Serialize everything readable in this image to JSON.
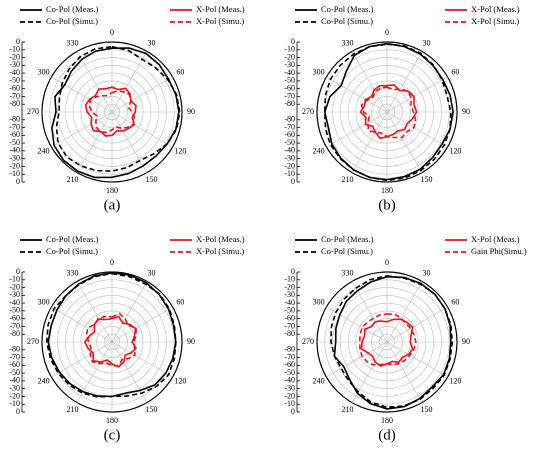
{
  "chart_data": [
    {
      "type": "polar",
      "label": "(a)",
      "rlim": [
        -90,
        0
      ],
      "rticks": [
        0,
        -10,
        -20,
        -30,
        -40,
        -50,
        -60,
        -70,
        -80
      ],
      "thetaticks": [
        0,
        30,
        60,
        90,
        120,
        150,
        180,
        210,
        240,
        270,
        300,
        330
      ],
      "grid": true,
      "theta": [
        0,
        15,
        30,
        45,
        60,
        75,
        90,
        105,
        120,
        135,
        150,
        165,
        180,
        195,
        210,
        225,
        240,
        255,
        270,
        285,
        300,
        315,
        330,
        345
      ],
      "series": [
        {
          "name": "Co-Pol (Meas.)",
          "color": "#000000",
          "dash": false,
          "values": [
            -8,
            -5,
            -3,
            -4,
            -6,
            -5,
            -4,
            -5,
            -8,
            -10,
            -10,
            -8,
            -6,
            -3,
            -2,
            -2,
            -4,
            -10,
            -18,
            -14,
            -20,
            -16,
            -12,
            -9
          ]
        },
        {
          "name": "X-Pol (Meas.)",
          "color": "#e8141b",
          "dash": false,
          "values": [
            -58,
            -60,
            -55,
            -57,
            -62,
            -58,
            -60,
            -63,
            -57,
            -60,
            -62,
            -65,
            -60,
            -58,
            -61,
            -56,
            -59,
            -63,
            -58,
            -55,
            -57,
            -60,
            -56,
            -59
          ]
        },
        {
          "name": "Co-Pol (Simu.)",
          "color": "#000000",
          "dash": true,
          "values": [
            -6,
            -8,
            -12,
            -10,
            -7,
            -4,
            -3,
            -4,
            -8,
            -14,
            -18,
            -16,
            -14,
            -12,
            -10,
            -8,
            -10,
            -16,
            -22,
            -20,
            -16,
            -12,
            -8,
            -6
          ]
        },
        {
          "name": "X-Pol (Simu.)",
          "color": "#e8141b",
          "dash": true,
          "values": [
            -65,
            -62,
            -60,
            -58,
            -62,
            -68,
            -64,
            -60,
            -58,
            -62,
            -66,
            -70,
            -67,
            -63,
            -60,
            -62,
            -66,
            -70,
            -64,
            -60,
            -58,
            -62,
            -66,
            -68
          ]
        }
      ]
    },
    {
      "type": "polar",
      "label": "(b)",
      "rlim": [
        -90,
        0
      ],
      "rticks": [
        0,
        -10,
        -20,
        -30,
        -40,
        -50,
        -60,
        -70,
        -80
      ],
      "thetaticks": [
        0,
        30,
        60,
        90,
        120,
        150,
        180,
        210,
        240,
        270,
        300,
        330
      ],
      "grid": true,
      "theta": [
        0,
        15,
        30,
        45,
        60,
        75,
        90,
        105,
        120,
        135,
        150,
        165,
        180,
        195,
        210,
        225,
        240,
        255,
        270,
        285,
        300,
        315,
        330,
        345
      ],
      "series": [
        {
          "name": "Co-Pol (Meas.)",
          "color": "#000000",
          "dash": false,
          "values": [
            -2,
            -3,
            -4,
            -6,
            -7,
            -6,
            -5,
            -6,
            -8,
            -7,
            -5,
            -4,
            -3,
            -3,
            -4,
            -6,
            -8,
            -12,
            -10,
            -14,
            -22,
            -16,
            -6,
            -3
          ]
        },
        {
          "name": "X-Pol (Meas.)",
          "color": "#e8141b",
          "dash": false,
          "values": [
            -56,
            -54,
            -58,
            -52,
            -50,
            -54,
            -52,
            -56,
            -60,
            -58,
            -62,
            -60,
            -58,
            -55,
            -60,
            -64,
            -58,
            -62,
            -56,
            -60,
            -58,
            -62,
            -57,
            -55
          ]
        },
        {
          "name": "Co-Pol (Simu.)",
          "color": "#000000",
          "dash": true,
          "values": [
            -3,
            -2,
            -3,
            -5,
            -8,
            -10,
            -8,
            -6,
            -5,
            -4,
            -3,
            -2,
            -2,
            -3,
            -4,
            -5,
            -6,
            -8,
            -10,
            -8,
            -6,
            -5,
            -4,
            -3
          ]
        },
        {
          "name": "X-Pol (Simu.)",
          "color": "#e8141b",
          "dash": true,
          "values": [
            -58,
            -60,
            -56,
            -52,
            -54,
            -58,
            -56,
            -52,
            -50,
            -54,
            -52,
            -56,
            -58,
            -62,
            -60,
            -56,
            -62,
            -66,
            -60,
            -56,
            -60,
            -64,
            -60,
            -58
          ]
        }
      ]
    },
    {
      "type": "polar",
      "label": "(c)",
      "rlim": [
        -90,
        0
      ],
      "rticks": [
        0,
        -10,
        -20,
        -30,
        -40,
        -50,
        -60,
        -70,
        -80
      ],
      "thetaticks": [
        0,
        30,
        60,
        90,
        120,
        150,
        180,
        210,
        240,
        270,
        300,
        330
      ],
      "grid": true,
      "theta": [
        0,
        15,
        30,
        45,
        60,
        75,
        90,
        105,
        120,
        135,
        150,
        165,
        180,
        195,
        210,
        225,
        240,
        255,
        270,
        285,
        300,
        315,
        330,
        345
      ],
      "series": [
        {
          "name": "Co-Pol (Meas.)",
          "color": "#000000",
          "dash": false,
          "values": [
            -1,
            -1,
            -2,
            -4,
            -6,
            -8,
            -8,
            -9,
            -10,
            -12,
            -18,
            -22,
            -20,
            -18,
            -16,
            -14,
            -12,
            -10,
            -8,
            -9,
            -8,
            -6,
            -4,
            -2
          ]
        },
        {
          "name": "X-Pol (Meas.)",
          "color": "#e8141b",
          "dash": false,
          "values": [
            -60,
            -56,
            -62,
            -58,
            -55,
            -60,
            -64,
            -58,
            -62,
            -66,
            -60,
            -57,
            -62,
            -66,
            -60,
            -56,
            -62,
            -58,
            -55,
            -60,
            -64,
            -58,
            -56,
            -60
          ]
        },
        {
          "name": "Co-Pol (Simu.)",
          "color": "#000000",
          "dash": true,
          "values": [
            -2,
            -3,
            -4,
            -3,
            -5,
            -7,
            -8,
            -7,
            -6,
            -9,
            -14,
            -18,
            -20,
            -17,
            -14,
            -12,
            -10,
            -8,
            -6,
            -5,
            -4,
            -6,
            -5,
            -3
          ]
        },
        {
          "name": "X-Pol (Simu.)",
          "color": "#e8141b",
          "dash": true,
          "values": [
            -58,
            -52,
            -56,
            -60,
            -54,
            -58,
            -62,
            -60,
            -56,
            -60,
            -64,
            -58,
            -60,
            -62,
            -58,
            -54,
            -58,
            -62,
            -60,
            -56,
            -54,
            -58,
            -55,
            -56
          ]
        }
      ]
    },
    {
      "type": "polar",
      "label": "(d)",
      "rlim": [
        -90,
        0
      ],
      "rticks": [
        0,
        -10,
        -20,
        -30,
        -40,
        -50,
        -60,
        -70,
        -80
      ],
      "thetaticks": [
        0,
        30,
        60,
        90,
        120,
        150,
        180,
        210,
        240,
        270,
        300,
        330
      ],
      "grid": true,
      "theta": [
        0,
        15,
        30,
        45,
        60,
        75,
        90,
        105,
        120,
        135,
        150,
        165,
        180,
        195,
        210,
        225,
        240,
        255,
        270,
        285,
        300,
        315,
        330,
        345
      ],
      "series": [
        {
          "name": "Co-Pol (Meas.)",
          "color": "#000000",
          "dash": false,
          "values": [
            -6,
            -4,
            -3,
            -3,
            -4,
            -6,
            -8,
            -7,
            -6,
            -8,
            -6,
            -4,
            -4,
            -8,
            -14,
            -22,
            -26,
            -20,
            -24,
            -22,
            -20,
            -16,
            -14,
            -10
          ]
        },
        {
          "name": "X-Pol (Meas.)",
          "color": "#e8141b",
          "dash": false,
          "values": [
            -64,
            -60,
            -56,
            -54,
            -52,
            -58,
            -60,
            -56,
            -58,
            -62,
            -60,
            -64,
            -62,
            -58,
            -60,
            -64,
            -62,
            -56,
            -58,
            -60,
            -57,
            -62,
            -60,
            -62
          ]
        },
        {
          "name": "Co-Pol (Simu.)",
          "color": "#000000",
          "dash": true,
          "values": [
            -5,
            -5,
            -4,
            -3,
            -4,
            -5,
            -6,
            -6,
            -5,
            -6,
            -5,
            -5,
            -6,
            -10,
            -16,
            -20,
            -22,
            -20,
            -18,
            -16,
            -14,
            -12,
            -10,
            -7
          ]
        },
        {
          "name": "Gain Phi(Simu.)",
          "color": "#e8141b",
          "dash": true,
          "values": [
            -54,
            -53,
            -54,
            -56,
            -55,
            -54,
            -53,
            -54,
            -56,
            -57,
            -58,
            -60,
            -62,
            -60,
            -56,
            -54,
            -53,
            -54,
            -55,
            -54,
            -53,
            -54,
            -55,
            -54
          ]
        }
      ]
    }
  ]
}
